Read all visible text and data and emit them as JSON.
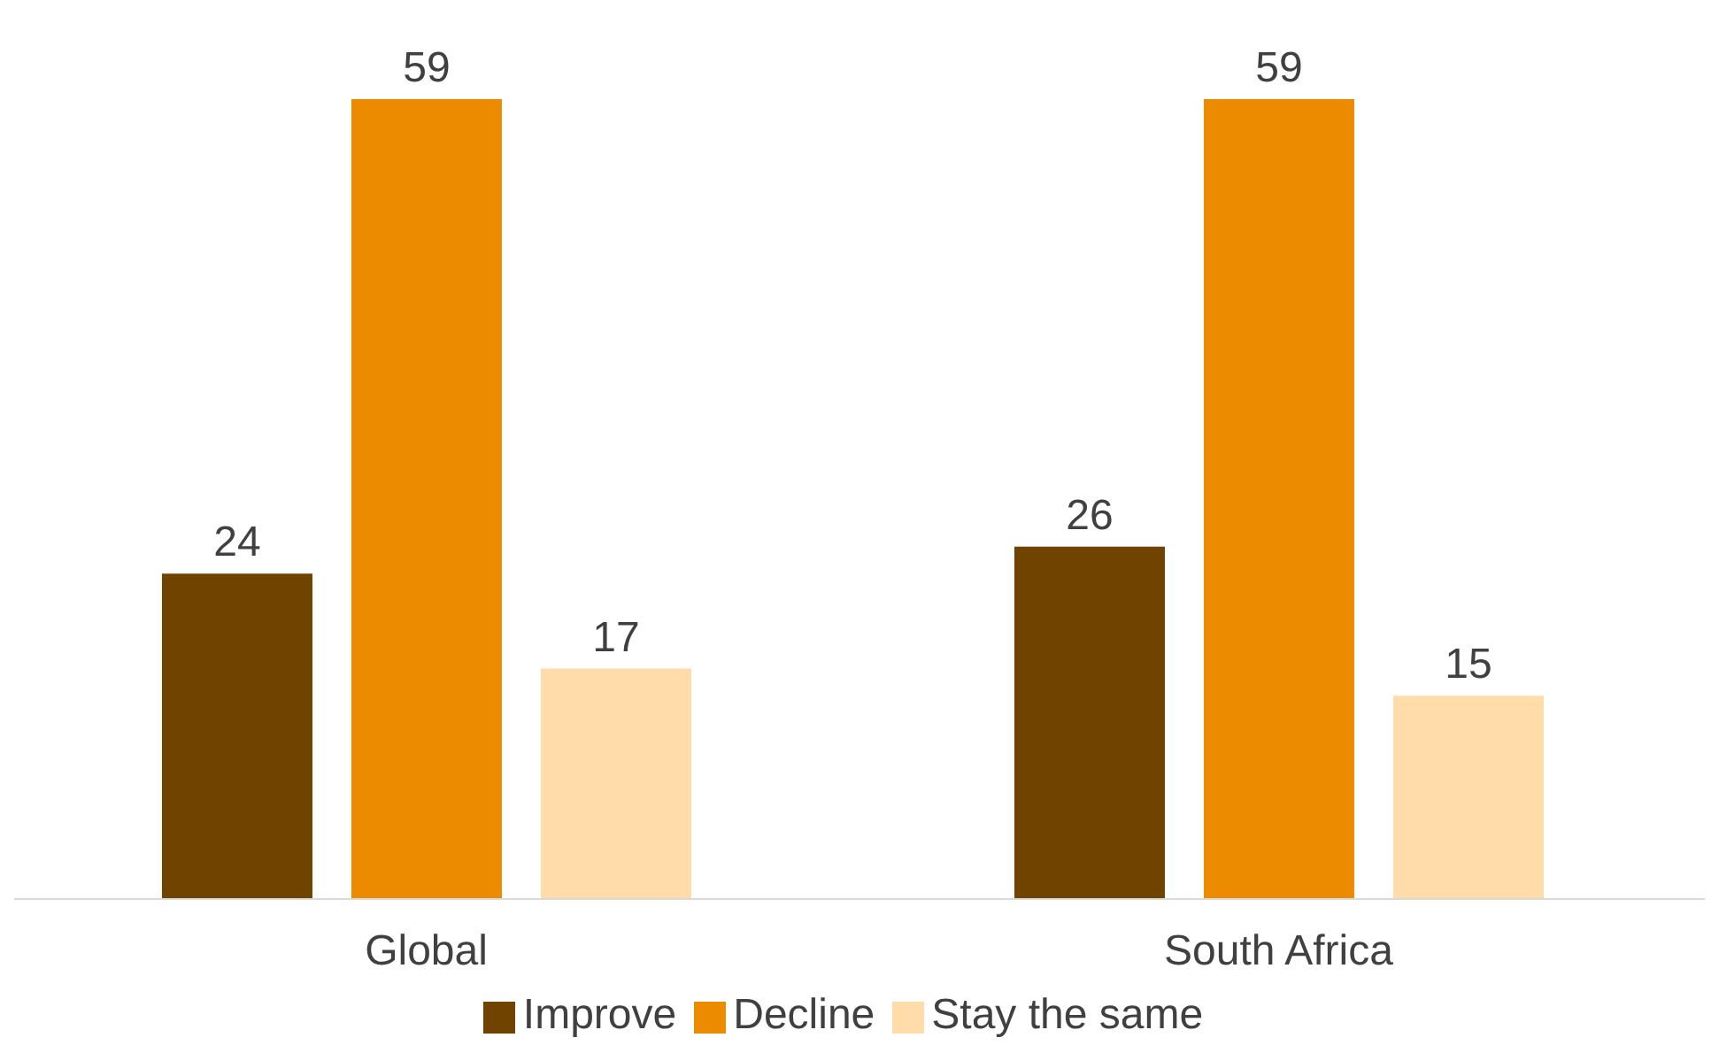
{
  "chart_data": {
    "type": "bar",
    "categories": [
      "Global",
      "South Africa"
    ],
    "series": [
      {
        "name": "Improve",
        "color": "#704300",
        "values": [
          24,
          26
        ]
      },
      {
        "name": "Decline",
        "color": "#ed8b00",
        "values": [
          59,
          59
        ]
      },
      {
        "name": "Stay the same",
        "color": "#ffdca9",
        "values": [
          17,
          15
        ]
      }
    ],
    "data_labels": true,
    "legend": "bottom",
    "grid": false,
    "tick_labels": "x"
  }
}
